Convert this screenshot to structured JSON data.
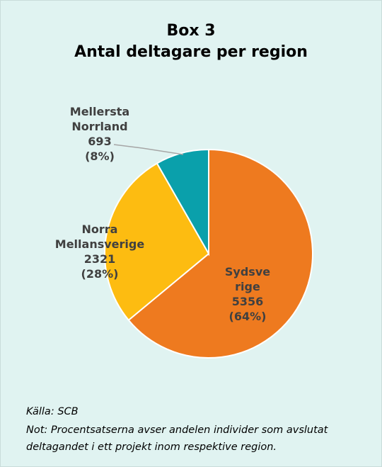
{
  "chart_data": {
    "type": "pie",
    "title": [
      "Box 3",
      "Antal deltagare per region"
    ],
    "categories": [
      "Sydsverige",
      "Norra Mellansverige",
      "Mellersta Norrland"
    ],
    "values": [
      5356,
      2321,
      693
    ],
    "percentages": [
      64,
      28,
      8
    ],
    "percentage_labels": [
      "(64%)",
      "(28%)",
      "(8%)"
    ],
    "colors": [
      "#ee7a1f",
      "#fdbc11",
      "#0aa0ab"
    ],
    "source": "Källa: SCB",
    "note": "Not: Procentsatserna avser andelen individer som avslutat deltagandet i ett projekt inom respektive region."
  }
}
